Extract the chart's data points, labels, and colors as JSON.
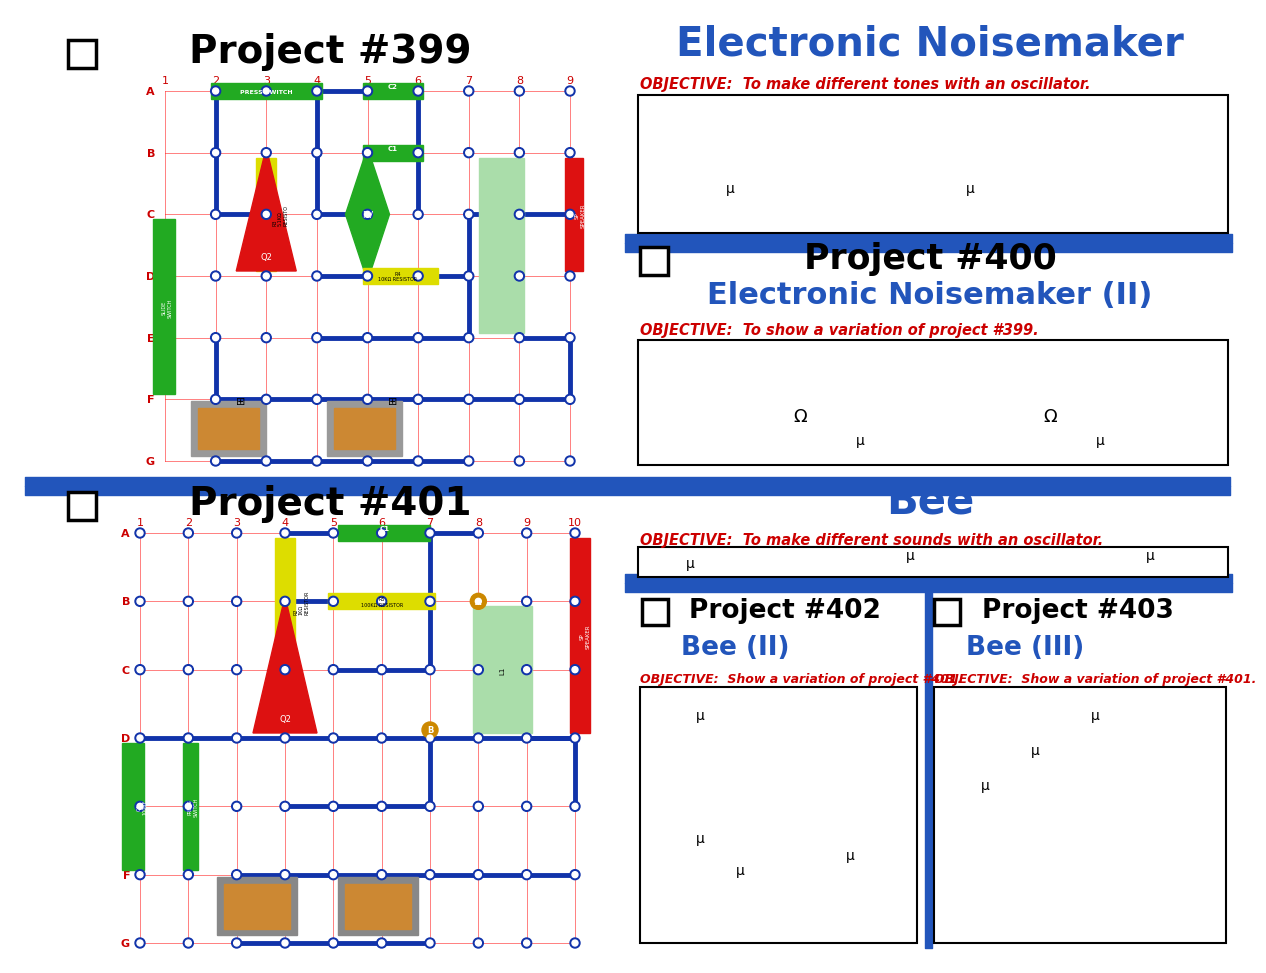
{
  "bg_color": "#ffffff",
  "blue_color": "#2255bb",
  "red_color": "#cc0000",
  "black_color": "#000000",
  "divider_blue": "#2255bb",
  "proj399_title": "Project #399",
  "proj399_name": "Electronic Noisemaker",
  "proj399_obj": "OBJECTIVE:  To make different tones with an oscillator.",
  "proj400_title": "Project #400",
  "proj400_name": "Electronic Noisemaker (II)",
  "proj400_obj": "OBJECTIVE:  To show a variation of project #399.",
  "proj401_title": "Project #401",
  "proj401_name": "Bee",
  "proj401_obj": "OBJECTIVE:  To make different sounds with an oscillator.",
  "proj402_title": "Project #402",
  "proj402_name": "Bee (II)",
  "proj402_obj": "OBJECTIVE:  Show a variation of project #401.",
  "proj403_title": "Project #403",
  "proj403_name": "Bee (III)",
  "proj403_obj": "OBJECTIVE:  Show a variation of project #401.",
  "figw": 12.35,
  "figh": 9.54,
  "dpi": 100
}
